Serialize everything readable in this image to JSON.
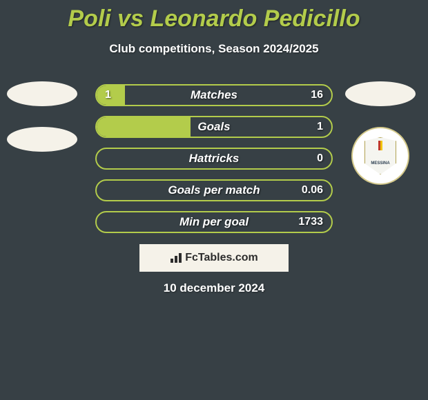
{
  "header": {
    "title": "Poli vs Leonardo Pedicillo",
    "subtitle": "Club competitions, Season 2024/2025"
  },
  "colors": {
    "background": "#374045",
    "accent": "#b3cc4b",
    "badge_bg": "#f5f2e9",
    "text": "#ffffff",
    "brand_bg": "#f5f2e9",
    "brand_text": "#2c2c2c"
  },
  "right_club": {
    "name": "Messina",
    "shield_stripe_left": "#c0392b",
    "shield_stripe_right": "#f1c40f"
  },
  "fontsize": {
    "title": 34,
    "subtitle": 17,
    "bar_label": 17,
    "bar_value": 16,
    "date": 17
  },
  "bars": [
    {
      "label": "Matches",
      "left": "1",
      "right": "16",
      "left_pct": 12
    },
    {
      "label": "Goals",
      "left": "",
      "right": "1",
      "left_pct": 40
    },
    {
      "label": "Hattricks",
      "left": "",
      "right": "0",
      "left_pct": 0
    },
    {
      "label": "Goals per match",
      "left": "",
      "right": "0.06",
      "left_pct": 0
    },
    {
      "label": "Min per goal",
      "left": "",
      "right": "1733",
      "left_pct": 0
    }
  ],
  "brand": "FcTables.com",
  "date": "10 december 2024"
}
